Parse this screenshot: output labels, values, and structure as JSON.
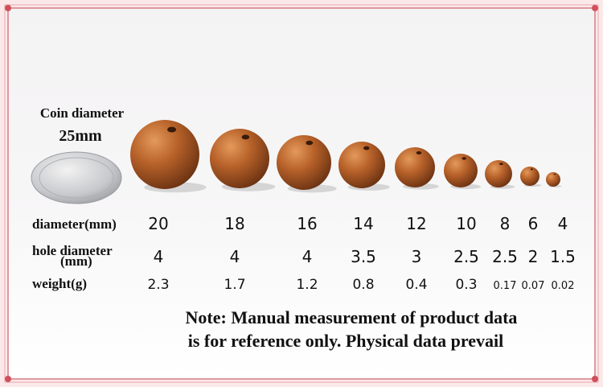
{
  "coin": {
    "label": "Coin diameter",
    "size": "25mm"
  },
  "table": {
    "rows": [
      {
        "label": "diameter(mm)",
        "values": [
          20,
          18,
          16,
          14,
          12,
          10,
          8,
          6,
          4
        ]
      },
      {
        "label": "hole diameter",
        "unit": "(mm)",
        "values": [
          4,
          4,
          4,
          3.5,
          3,
          2.5,
          2.5,
          2,
          1.5
        ]
      },
      {
        "label": "weight(g)",
        "values": [
          2.3,
          1.7,
          1.2,
          0.8,
          0.4,
          0.3,
          0.17,
          0.07,
          0.02
        ]
      }
    ]
  },
  "note": [
    "Note: Manual measurement of product data",
    "is for reference only. Physical data prevail"
  ]
}
